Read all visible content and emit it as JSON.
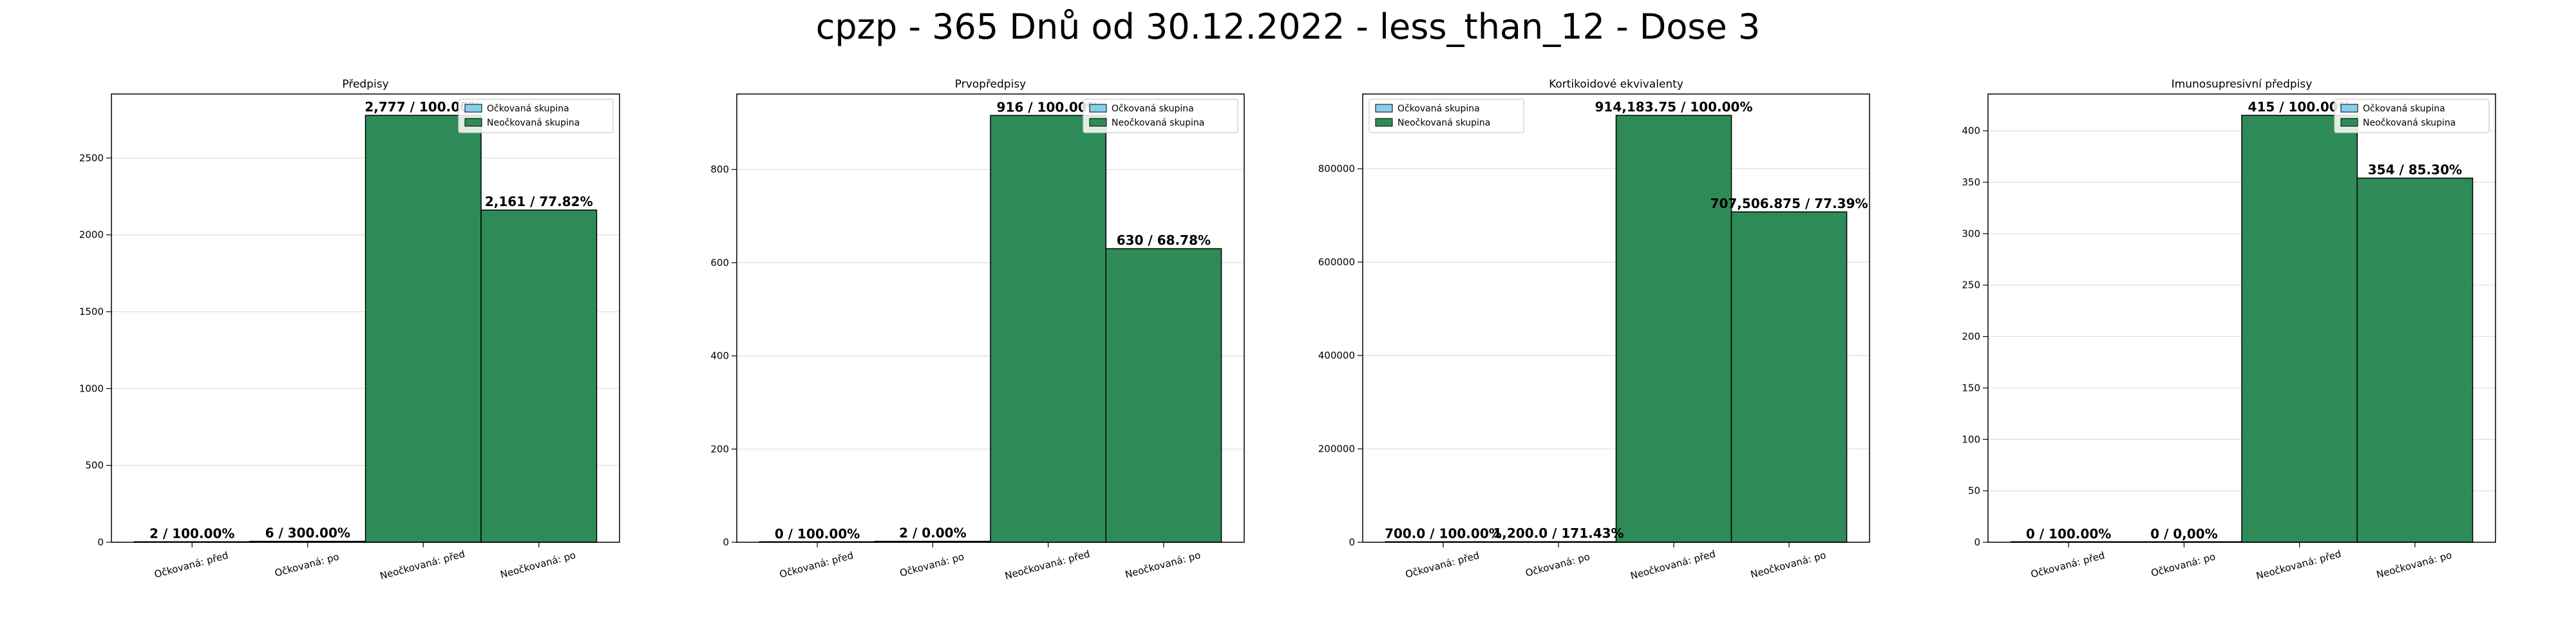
{
  "title": "cpzp - 365 Dnů od 30.12.2022 - less_than_12 - Dose 3",
  "colors": {
    "vaccinated": "#87ceeb",
    "unvaccinated": "#2e8b57",
    "edge": "#000000",
    "grid": "#dddddd"
  },
  "chart_data": [
    {
      "type": "bar",
      "title": "Předpisy",
      "categories": [
        "Očkovaná: před",
        "Očkovaná: po",
        "Neočkovaná: před",
        "Neočkovaná: po"
      ],
      "values": [
        2,
        6,
        2777,
        2161
      ],
      "bar_groups": [
        "Očkovaná skupina",
        "Očkovaná skupina",
        "Neočkovaná skupina",
        "Neočkovaná skupina"
      ],
      "data_labels": [
        "2 / 100.00%",
        "6 / 300.00%",
        "2,777 / 100.00%",
        "2,161 / 77.82%"
      ],
      "ylim": [
        0,
        2916
      ],
      "yticks": [
        0,
        500,
        1000,
        1500,
        2000,
        2500
      ],
      "ytick_labels": [
        "0",
        "500",
        "1000",
        "1500",
        "2000",
        "2500"
      ],
      "legend": [
        "Očkovaná skupina",
        "Neočkovaná skupina"
      ],
      "legend_position": "top-right",
      "grid": true
    },
    {
      "type": "bar",
      "title": "Prvopředpisy",
      "categories": [
        "Očkovaná: před",
        "Očkovaná: po",
        "Neočkovaná: před",
        "Neočkovaná: po"
      ],
      "values": [
        0,
        2,
        916,
        630
      ],
      "bar_groups": [
        "Očkovaná skupina",
        "Očkovaná skupina",
        "Neočkovaná skupina",
        "Neočkovaná skupina"
      ],
      "data_labels": [
        "0 / 100.00%",
        "2 / 0.00%",
        "916 / 100.00%",
        "630 / 68.78%"
      ],
      "ylim": [
        0,
        962
      ],
      "yticks": [
        0,
        200,
        400,
        600,
        800
      ],
      "ytick_labels": [
        "0",
        "200",
        "400",
        "600",
        "800"
      ],
      "legend": [
        "Očkovaná skupina",
        "Neočkovaná skupina"
      ],
      "legend_position": "top-right",
      "grid": true
    },
    {
      "type": "bar",
      "title": "Kortikoidové ekvivalenty",
      "categories": [
        "Očkovaná: před",
        "Očkovaná: po",
        "Neočkovaná: před",
        "Neočkovaná: po"
      ],
      "values": [
        700,
        1200,
        914183.75,
        707506.875
      ],
      "bar_groups": [
        "Očkovaná skupina",
        "Očkovaná skupina",
        "Neočkovaná skupina",
        "Neočkovaná skupina"
      ],
      "data_labels": [
        "700.0 / 100.00%",
        "1,200.0 / 171.43%",
        "914,183.75 / 100.00%",
        "707,506.875 / 77.39%"
      ],
      "ylim": [
        0,
        960000
      ],
      "yticks": [
        0,
        200000,
        400000,
        600000,
        800000
      ],
      "ytick_labels": [
        "0",
        "200000",
        "400000",
        "600000",
        "800000"
      ],
      "legend": [
        "Očkovaná skupina",
        "Neočkovaná skupina"
      ],
      "legend_position": "top-left",
      "grid": true
    },
    {
      "type": "bar",
      "title": "Imunosupresivní předpisy",
      "categories": [
        "Očkovaná: před",
        "Očkovaná: po",
        "Neočkovaná: před",
        "Neočkovaná: po"
      ],
      "values": [
        0,
        0,
        415,
        354
      ],
      "bar_groups": [
        "Očkovaná skupina",
        "Očkovaná skupina",
        "Neočkovaná skupina",
        "Neočkovaná skupina"
      ],
      "data_labels": [
        "0 / 100.00%",
        "0 / 0,00%",
        "415 / 100.00%",
        "354 / 85.30%"
      ],
      "ylim": [
        0,
        435.75
      ],
      "yticks": [
        0,
        50,
        100,
        150,
        200,
        250,
        300,
        350,
        400
      ],
      "ytick_labels": [
        "0",
        "50",
        "100",
        "150",
        "200",
        "250",
        "300",
        "350",
        "400"
      ],
      "legend": [
        "Očkovaná skupina",
        "Neočkovaná skupina"
      ],
      "legend_position": "top-right",
      "grid": true
    }
  ]
}
